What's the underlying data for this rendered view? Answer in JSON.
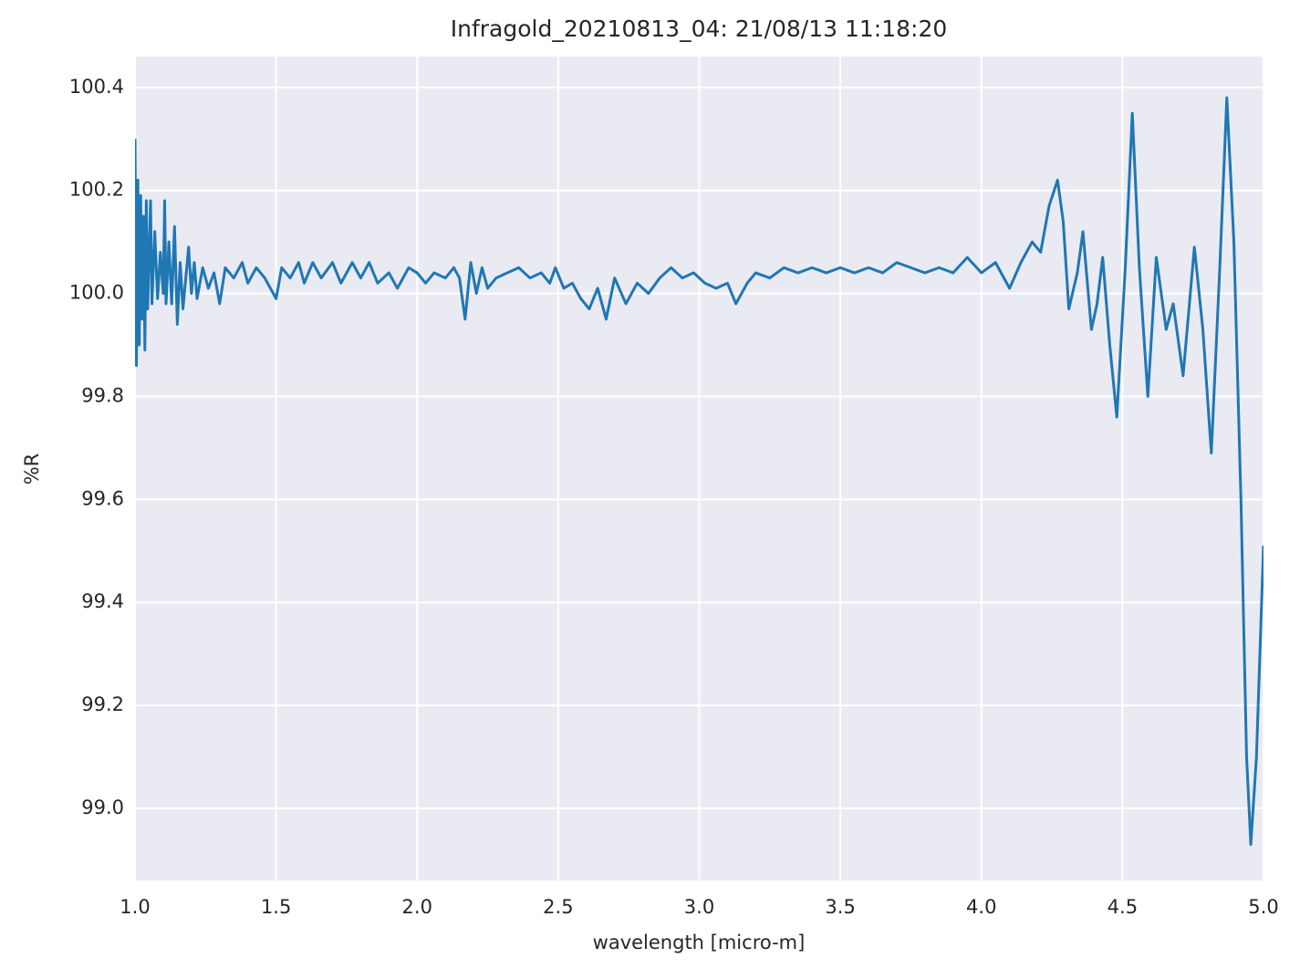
{
  "chart_data": {
    "type": "line",
    "title": "Infragold_20210813_04:  21/08/13 11:18:20",
    "x_label": "wavelength [micro-m]",
    "y_label": "%R",
    "xlim": [
      1.0,
      5.0
    ],
    "ylim": [
      98.86,
      100.46
    ],
    "xticks": [
      {
        "value": 1.0,
        "label": "1.0"
      },
      1.5,
      {
        "value": 2.0,
        "label": "2.0"
      },
      2.5,
      {
        "value": 3.0,
        "label": "3.0"
      },
      3.5,
      {
        "value": 4.0,
        "label": "4.0"
      },
      4.5,
      {
        "value": 5.0,
        "label": "5.0"
      }
    ],
    "yticks": [
      {
        "value": 99.0,
        "label": "99.0"
      },
      99.2,
      99.4,
      99.6,
      99.8,
      {
        "value": 100.0,
        "label": "100.0"
      },
      100.2,
      100.4
    ],
    "grid": true,
    "series": [
      {
        "name": "%R",
        "color": "#1f77b4",
        "x": [
          1.0,
          1.005,
          1.01,
          1.015,
          1.02,
          1.025,
          1.03,
          1.035,
          1.04,
          1.045,
          1.055,
          1.06,
          1.07,
          1.08,
          1.09,
          1.1,
          1.105,
          1.11,
          1.12,
          1.13,
          1.14,
          1.15,
          1.16,
          1.17,
          1.19,
          1.2,
          1.21,
          1.22,
          1.24,
          1.26,
          1.28,
          1.3,
          1.32,
          1.35,
          1.38,
          1.4,
          1.43,
          1.46,
          1.5,
          1.52,
          1.55,
          1.58,
          1.6,
          1.63,
          1.66,
          1.7,
          1.73,
          1.77,
          1.8,
          1.83,
          1.86,
          1.9,
          1.93,
          1.97,
          2.0,
          2.03,
          2.06,
          2.1,
          2.13,
          2.15,
          2.17,
          2.19,
          2.21,
          2.23,
          2.25,
          2.28,
          2.32,
          2.36,
          2.4,
          2.44,
          2.47,
          2.49,
          2.52,
          2.55,
          2.58,
          2.61,
          2.64,
          2.67,
          2.7,
          2.74,
          2.78,
          2.82,
          2.86,
          2.9,
          2.94,
          2.98,
          3.02,
          3.06,
          3.1,
          3.13,
          3.17,
          3.2,
          3.25,
          3.3,
          3.35,
          3.4,
          3.45,
          3.5,
          3.55,
          3.6,
          3.65,
          3.7,
          3.75,
          3.8,
          3.85,
          3.9,
          3.95,
          4.0,
          4.05,
          4.1,
          4.14,
          4.18,
          4.21,
          4.24,
          4.27,
          4.29,
          4.31,
          4.34,
          4.36,
          4.39,
          4.41,
          4.43,
          4.455,
          4.48,
          4.51,
          4.535,
          4.56,
          4.59,
          4.62,
          4.655,
          4.68,
          4.715,
          4.755,
          4.785,
          4.815,
          4.845,
          4.87,
          4.895,
          4.92,
          4.94,
          4.955,
          4.975,
          5.0
        ],
        "values": [
          100.3,
          99.86,
          100.22,
          99.9,
          100.19,
          99.95,
          100.15,
          99.89,
          100.18,
          99.97,
          100.18,
          99.98,
          100.12,
          99.99,
          100.08,
          100.0,
          100.18,
          99.98,
          100.1,
          99.98,
          100.13,
          99.94,
          100.06,
          99.97,
          100.09,
          100.0,
          100.06,
          99.99,
          100.05,
          100.01,
          100.04,
          99.98,
          100.05,
          100.03,
          100.06,
          100.02,
          100.05,
          100.03,
          99.99,
          100.05,
          100.03,
          100.06,
          100.02,
          100.06,
          100.03,
          100.06,
          100.02,
          100.06,
          100.03,
          100.06,
          100.02,
          100.04,
          100.01,
          100.05,
          100.04,
          100.02,
          100.04,
          100.03,
          100.05,
          100.03,
          99.95,
          100.06,
          100.0,
          100.05,
          100.01,
          100.03,
          100.04,
          100.05,
          100.03,
          100.04,
          100.02,
          100.05,
          100.01,
          100.02,
          99.99,
          99.97,
          100.01,
          99.95,
          100.03,
          99.98,
          100.02,
          100.0,
          100.03,
          100.05,
          100.03,
          100.04,
          100.02,
          100.01,
          100.02,
          99.98,
          100.02,
          100.04,
          100.03,
          100.05,
          100.04,
          100.05,
          100.04,
          100.05,
          100.04,
          100.05,
          100.04,
          100.06,
          100.05,
          100.04,
          100.05,
          100.04,
          100.07,
          100.04,
          100.06,
          100.01,
          100.06,
          100.1,
          100.08,
          100.17,
          100.22,
          100.14,
          99.97,
          100.04,
          100.12,
          99.93,
          99.98,
          100.07,
          99.9,
          99.76,
          100.05,
          100.35,
          100.05,
          99.8,
          100.07,
          99.93,
          99.98,
          99.84,
          100.09,
          99.93,
          99.69,
          100.05,
          100.38,
          100.1,
          99.6,
          99.1,
          98.93,
          99.1,
          99.51
        ]
      }
    ]
  }
}
